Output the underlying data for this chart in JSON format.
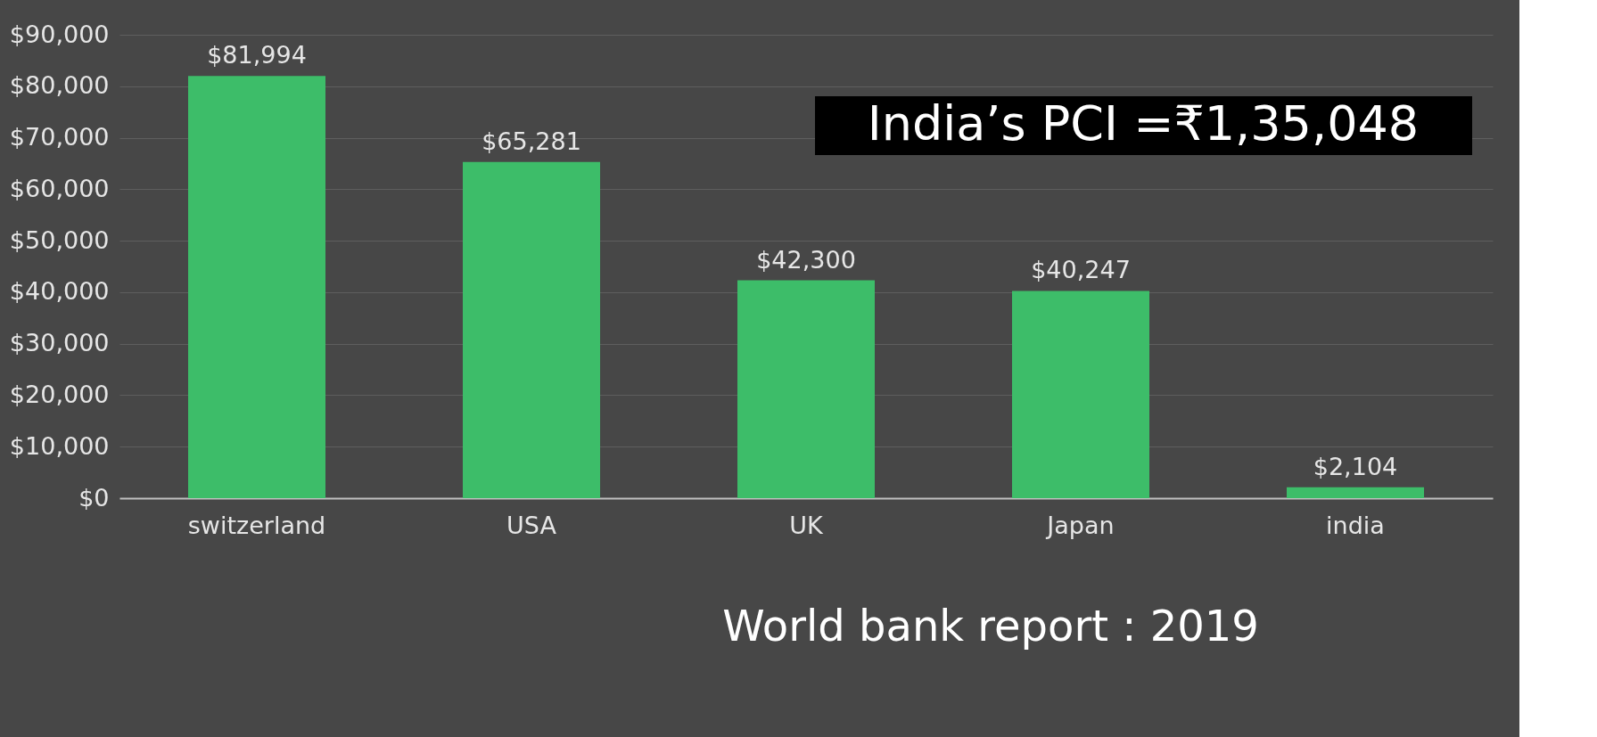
{
  "chart_data": {
    "type": "bar",
    "categories": [
      "switzerland",
      "USA",
      "UK",
      "Japan",
      "india"
    ],
    "values": [
      81994,
      65281,
      42300,
      40247,
      2104
    ],
    "value_labels": [
      "$81,994",
      "$65,281",
      "$42,300",
      "$40,247",
      "$2,104"
    ],
    "color": "#3dbd69",
    "ylim": [
      0,
      90000
    ],
    "yticks": [
      {
        "value": 0,
        "label": "$0"
      },
      {
        "value": 10000,
        "label": "$10,000"
      },
      {
        "value": 20000,
        "label": "$20,000"
      },
      {
        "value": 30000,
        "label": "$30,000"
      },
      {
        "value": 40000,
        "label": "$40,000"
      },
      {
        "value": 50000,
        "label": "$50,000"
      },
      {
        "value": 60000,
        "label": "$60,000"
      },
      {
        "value": 70000,
        "label": "$70,000"
      },
      {
        "value": 80000,
        "label": "$80,000"
      },
      {
        "value": 90000,
        "label": "$90,000"
      }
    ],
    "grid": "y",
    "annotations": [
      "India’s PCI   =₹1,35,048",
      "World bank report : 2019"
    ]
  }
}
